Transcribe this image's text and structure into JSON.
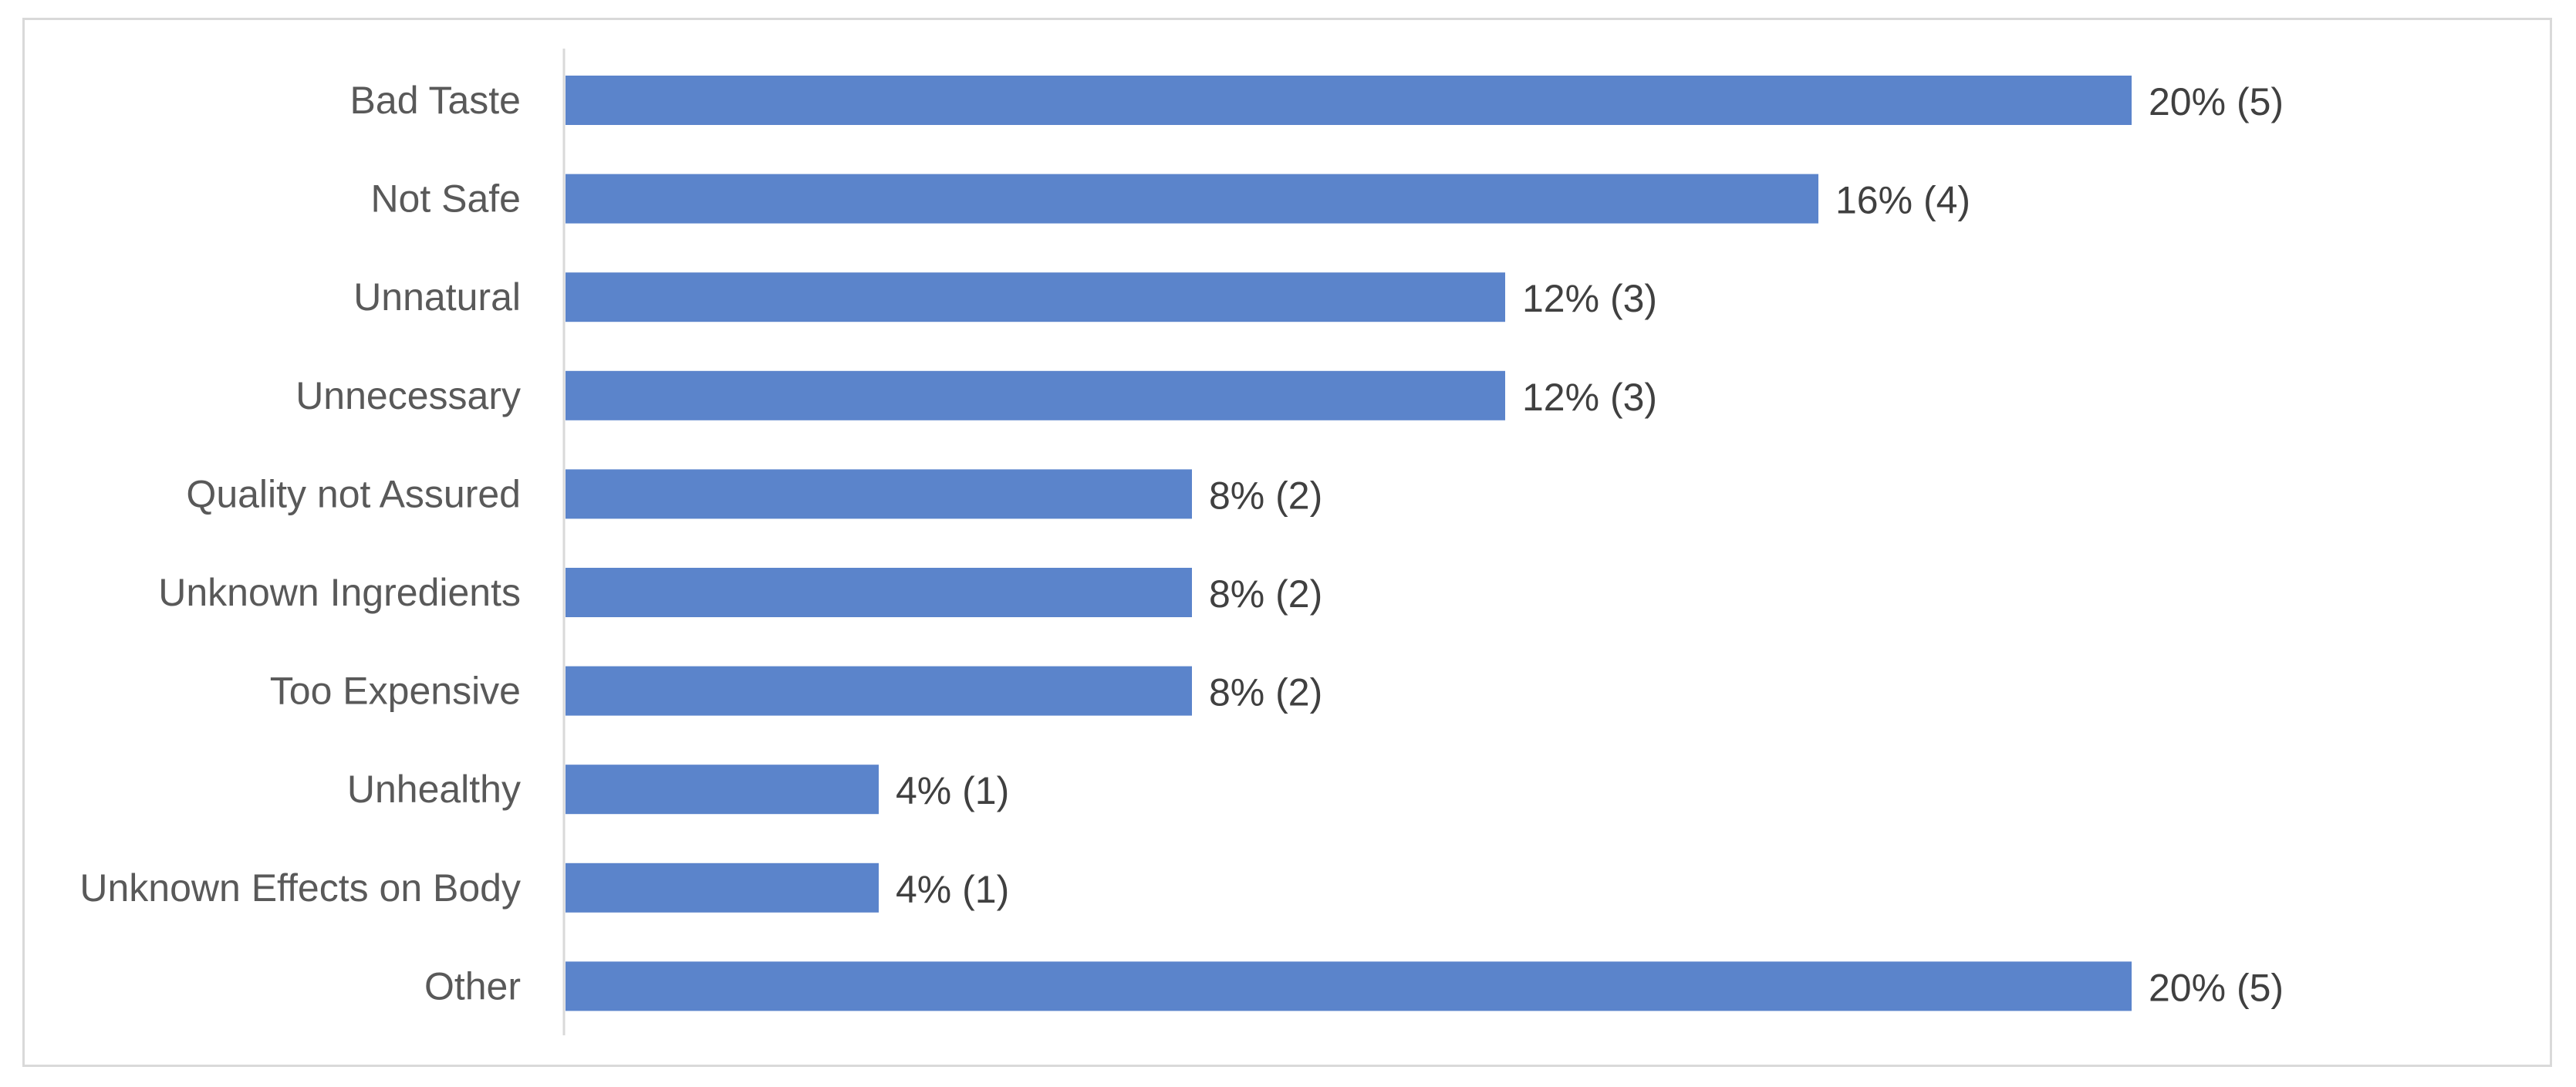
{
  "chart_data": {
    "type": "bar",
    "orientation": "horizontal",
    "categories": [
      "Bad Taste",
      "Not Safe",
      "Unnatural",
      "Unnecessary",
      "Quality not Assured",
      "Unknown Ingredients",
      "Too Expensive",
      "Unhealthy",
      "Unknown Effects on Body",
      "Other"
    ],
    "values": [
      20,
      16,
      12,
      12,
      8,
      8,
      8,
      4,
      4,
      20
    ],
    "counts": [
      5,
      4,
      3,
      3,
      2,
      2,
      2,
      1,
      1,
      5
    ],
    "data_labels": [
      "20% (5)",
      "16% (4)",
      "12% (3)",
      "12% (3)",
      "8% (2)",
      "8% (2)",
      "8% (2)",
      "4% (1)",
      "4% (1)",
      "20% (5)"
    ],
    "value_unit": "%",
    "xlim": [
      0,
      20
    ],
    "bar_color": "#5b84cb",
    "grid": false,
    "legend": "none",
    "title": "",
    "xlabel": "",
    "ylabel": ""
  }
}
